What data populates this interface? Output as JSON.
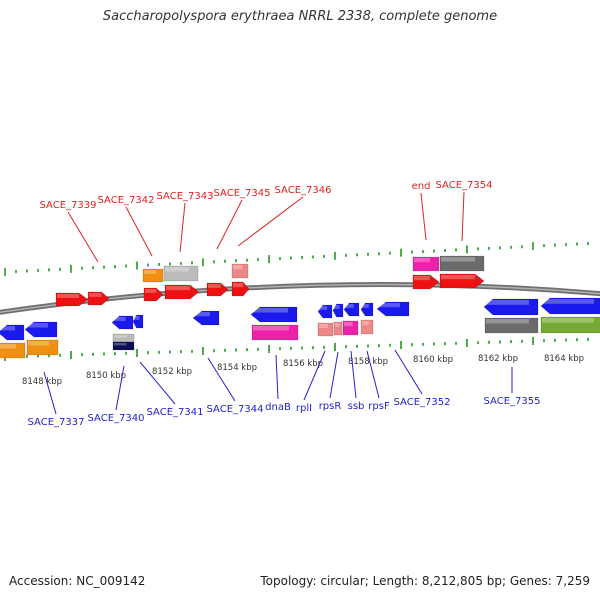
{
  "title": "Saccharopolyspora erythraea NRRL 2338, complete genome",
  "accession": "Accession: NC_009142",
  "summary": "Topology: circular; Length: 8,212,805 bp; Genes: 7,259",
  "colors": {
    "top_label": "#dd2222",
    "bottom_label": "#2222cc",
    "backbone": "#808080",
    "tick": "#229922",
    "red": "#ee1111",
    "blue": "#1a1aee",
    "orange": "#f09010",
    "gray": "#bbbbbb",
    "darkgray": "#6b6b6b",
    "pink": "#e8e080",
    "salmon": "#ee8888",
    "magenta": "#ee22aa",
    "olive": "#77aa33",
    "navy": "#0d0d55"
  },
  "kbp_labels": [
    "8148 kbp",
    "8150 kbp",
    "8152 kbp",
    "8154 kbp",
    "8156 kbp",
    "8158 kbp",
    "8160 kbp",
    "8162 kbp",
    "8164 kbp"
  ],
  "top_labels": [
    "SACE_7339",
    "SACE_7342",
    "SACE_7343",
    "SACE_7345",
    "SACE_7346",
    "end",
    "SACE_7354"
  ],
  "bottom_labels": [
    "SACE_7337",
    "SACE_7340",
    "SACE_7341",
    "SACE_7344",
    "dnaB",
    "rplI",
    "rpsR",
    "ssb",
    "rpsF",
    "SACE_7352",
    "SACE_7355"
  ]
}
